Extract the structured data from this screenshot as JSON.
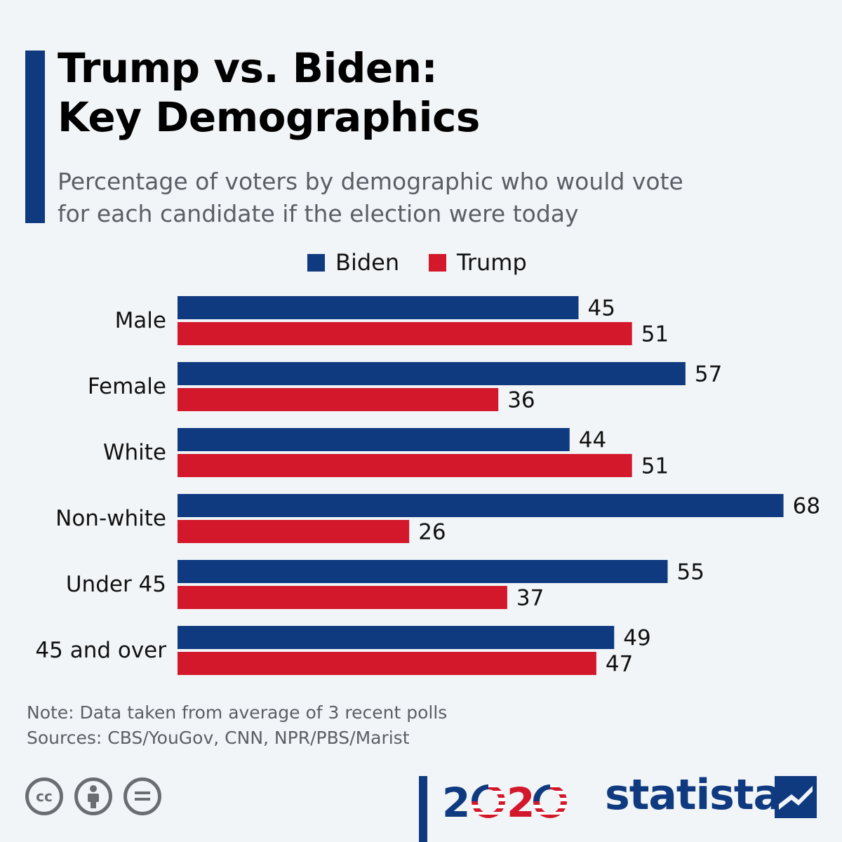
{
  "title_line1": "Trump vs. Biden:",
  "title_line2": "Key Demographics",
  "subtitle_line1": "Percentage of voters by demographic who would vote",
  "subtitle_line2": "for each candidate if the election were today",
  "note": "Note: Data taken from average of 3 recent polls",
  "sources": "Sources: CBS/YouGov, CNN, NPR/PBS/Marist",
  "brand": "statista",
  "year_logo": {
    "digit1": "2",
    "digit2": "2"
  },
  "icons": [
    "cc-license-icon",
    "attribution-icon",
    "no-derivatives-icon"
  ],
  "colors": {
    "biden": "#0f3a80",
    "trump": "#d3182b",
    "accent": "#0f3a80"
  },
  "chart_data": {
    "type": "bar",
    "orientation": "horizontal",
    "categories": [
      "Male",
      "Female",
      "White",
      "Non-white",
      "Under 45",
      "45 and over"
    ],
    "series": [
      {
        "name": "Biden",
        "values": [
          45,
          57,
          44,
          68,
          55,
          49
        ]
      },
      {
        "name": "Trump",
        "values": [
          51,
          36,
          51,
          26,
          37,
          47
        ]
      }
    ],
    "legend_position": "top-center",
    "grid": false
  }
}
